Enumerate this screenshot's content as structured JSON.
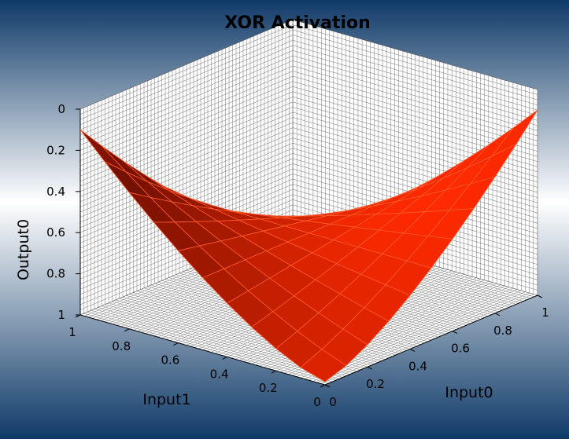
{
  "chart_data": {
    "type": "surface",
    "title": "XOR Activation",
    "x_axis": {
      "label": "Input0",
      "range": [
        0,
        1
      ],
      "ticks": [
        "0",
        "0.2",
        "0.4",
        "0.6",
        "0.8",
        "1"
      ]
    },
    "y_axis": {
      "label": "Input1",
      "range": [
        0,
        1
      ],
      "ticks": [
        "0",
        "0.2",
        "0.4",
        "0.6",
        "0.8",
        "1"
      ]
    },
    "z_axis": {
      "label": "Output0",
      "range": [
        1,
        0
      ],
      "inverted": true,
      "ticks": [
        "0",
        "0.2",
        "0.4",
        "0.6",
        "0.8",
        "1"
      ]
    },
    "grid": {
      "x_values": [
        0,
        0.1,
        0.2,
        0.3,
        0.4,
        0.5,
        0.6,
        0.7,
        0.8,
        0.9,
        1
      ]
    },
    "surface_color": "#ff2a00",
    "surface_shadow_color": "#5a0a00",
    "background": {
      "top": "#0f3a68",
      "middle": "#ffffff",
      "bottom": "#0f3a68"
    },
    "panel_color": "#ffffff",
    "panel_grid_color": "#666666"
  }
}
